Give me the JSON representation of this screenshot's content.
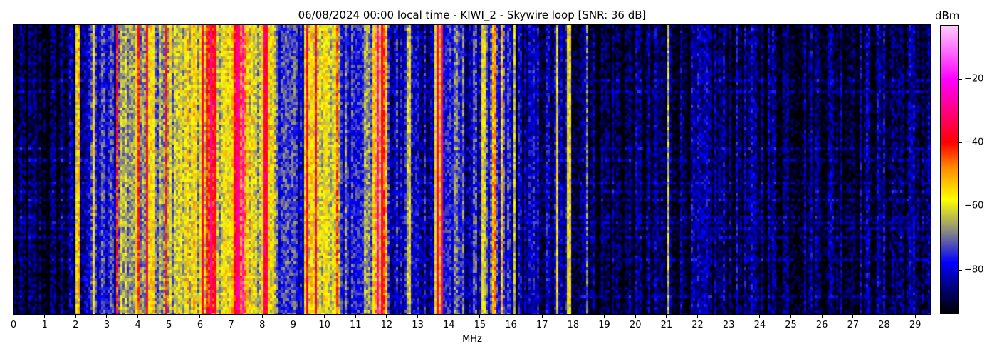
{
  "chart_data": {
    "type": "heatmap",
    "title": "06/08/2024 00:00 local time - KIWI_2 - Skywire loop [SNR: 36 dB]",
    "xlabel": "MHz",
    "xlim": [
      0,
      29.5
    ],
    "xticks": [
      "0",
      "1",
      "2",
      "3",
      "4",
      "5",
      "6",
      "7",
      "8",
      "9",
      "10",
      "11",
      "12",
      "13",
      "14",
      "15",
      "16",
      "17",
      "18",
      "19",
      "20",
      "21",
      "22",
      "23",
      "24",
      "25",
      "26",
      "27",
      "28",
      "29"
    ],
    "colorbar": {
      "label": "dBm",
      "range": [
        -94,
        -3
      ],
      "ticks": [
        -20,
        -40,
        -60,
        -80
      ],
      "tick_labels": [
        "−20",
        "−40",
        "−60",
        "−80"
      ],
      "colormap_stops": [
        {
          "dbm": -94,
          "color": "#000000"
        },
        {
          "dbm": -86,
          "color": "#00007a"
        },
        {
          "dbm": -78,
          "color": "#0000ff"
        },
        {
          "dbm": -68,
          "color": "#8a8a80"
        },
        {
          "dbm": -58,
          "color": "#ffff00"
        },
        {
          "dbm": -48,
          "color": "#ff8c00"
        },
        {
          "dbm": -40,
          "color": "#ff0000"
        },
        {
          "dbm": -30,
          "color": "#ff0080"
        },
        {
          "dbm": -20,
          "color": "#ff00ff"
        },
        {
          "dbm": -3,
          "color": "#ffccff"
        }
      ]
    },
    "band_profile": {
      "start_mhz": [
        0,
        1.5,
        2,
        2.5,
        3.3,
        4,
        4.3,
        4.5,
        5,
        5.5,
        6.2,
        6.5,
        7,
        7.5,
        8,
        8.5,
        9,
        9.3,
        10,
        10.5,
        11,
        11.5,
        12,
        13.5,
        13.8,
        14.5,
        15,
        16,
        18.5,
        21
      ],
      "mean_dbm": [
        -92,
        -88,
        -80,
        -78,
        -65,
        -62,
        -52,
        -68,
        -62,
        -60,
        -46,
        -62,
        -46,
        -60,
        -62,
        -75,
        -78,
        -58,
        -65,
        -75,
        -70,
        -50,
        -82,
        -55,
        -76,
        -80,
        -78,
        -85,
        -90,
        -88
      ]
    },
    "carriers_mhz": [
      2.05,
      2.55,
      3.3,
      4.0,
      4.3,
      4.9,
      6.05,
      6.35,
      7.2,
      7.35,
      8.1,
      9.45,
      9.7,
      10.4,
      11.7,
      11.85,
      12.7,
      13.6,
      13.75,
      15.1,
      15.45,
      15.7,
      16.1,
      17.5,
      17.85,
      18.45,
      21.05
    ],
    "grid": false
  }
}
